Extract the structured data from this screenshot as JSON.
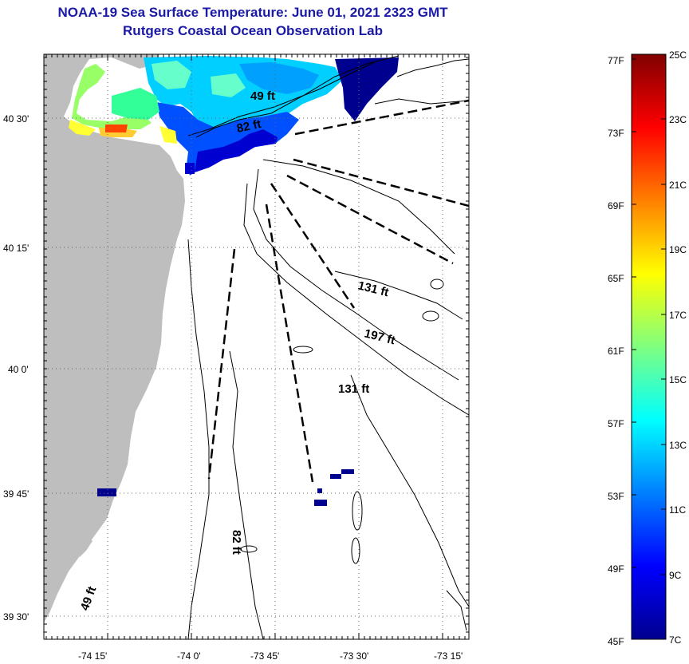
{
  "header": {
    "title": "NOAA-19 Sea Surface Temperature:  June 01, 2021 2323 GMT",
    "subtitle": "Rutgers Coastal Ocean Observation Lab"
  },
  "map": {
    "lon_labels": [
      "-74 15'",
      "-74 0'",
      "-73 45'",
      "-73 30'",
      "-73 15'"
    ],
    "lat_labels": [
      "40 30'",
      "40 15'",
      "40 0'",
      "39 45'",
      "39 30'"
    ],
    "contour_labels": {
      "c49_top": "49 ft",
      "c82_top": "82 ft",
      "c131_a": "131 ft",
      "c197": "197 ft",
      "c131_b": "131 ft",
      "c82_mid": "82 ft",
      "c49_bottom": "49 ft"
    }
  },
  "colorbar": {
    "f_labels": [
      "77F",
      "73F",
      "69F",
      "65F",
      "61F",
      "57F",
      "53F",
      "49F",
      "45F"
    ],
    "c_labels": [
      "25C",
      "23C",
      "21C",
      "19C",
      "17C",
      "15C",
      "13C",
      "11C",
      "9C",
      "7C"
    ]
  },
  "colors": {
    "title": "#1a1aa6",
    "land": "#bebebe",
    "warm": "#ff3300",
    "deep": "#00008f"
  }
}
